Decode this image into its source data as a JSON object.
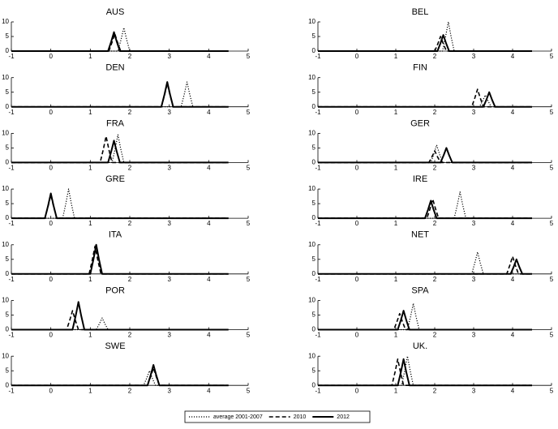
{
  "chart_data": {
    "type": "line",
    "legend": [
      {
        "name": "average 2001-2007",
        "dash": "dotted",
        "color": "#000000"
      },
      {
        "name": "2010",
        "dash": "dashed",
        "color": "#000000"
      },
      {
        "name": "2012",
        "dash": "solid",
        "color": "#000000"
      }
    ],
    "xlim": [
      -1,
      5
    ],
    "xticks": [
      -1,
      0,
      1,
      2,
      3,
      4,
      5
    ],
    "ylim": [
      0,
      10
    ],
    "yticks": [
      0,
      5,
      10
    ],
    "panels": [
      {
        "title": "AUS",
        "series": [
          {
            "x": [
              -1,
              1.7,
              1.78,
              1.85,
              1.92,
              2,
              4.5
            ],
            "values": [
              0,
              0,
              4,
              8,
              4,
              0,
              0
            ]
          },
          {
            "x": [
              -1,
              1.47,
              1.55,
              1.62,
              1.69,
              1.77,
              4.5
            ],
            "values": [
              0,
              0,
              3,
              6,
              3,
              0,
              0
            ]
          },
          {
            "x": [
              -1,
              1.45,
              1.53,
              1.6,
              1.67,
              1.75,
              4.5
            ],
            "values": [
              0,
              0,
              3.25,
              6.5,
              3.25,
              0,
              0
            ]
          }
        ]
      },
      {
        "title": "BEL",
        "series": [
          {
            "x": [
              -1,
              2.2,
              2.28,
              2.35,
              2.42,
              2.5,
              4.5
            ],
            "values": [
              0,
              0,
              5,
              10,
              5,
              0,
              0
            ]
          },
          {
            "x": [
              -1,
              2,
              2.08,
              2.15,
              2.22,
              2.3,
              4.5
            ],
            "values": [
              0,
              0,
              2.5,
              5,
              2.5,
              0,
              0
            ]
          },
          {
            "x": [
              -1,
              2.07,
              2.15,
              2.22,
              2.29,
              2.37,
              4.5
            ],
            "values": [
              0,
              0,
              2.75,
              5.5,
              2.75,
              0,
              0
            ]
          }
        ]
      },
      {
        "title": "DEN",
        "series": [
          {
            "x": [
              -1,
              3.3,
              3.38,
              3.45,
              3.52,
              3.6,
              4.5
            ],
            "values": [
              0,
              0,
              4.25,
              8.5,
              4.25,
              0,
              0
            ]
          },
          {
            "x": [
              -1,
              2.8,
              2.88,
              2.95,
              3.02,
              3.1,
              4.5
            ],
            "values": [
              0,
              0,
              4,
              8,
              4,
              0,
              0
            ]
          },
          {
            "x": [
              -1,
              2.8,
              2.88,
              2.95,
              3.02,
              3.1,
              4.5
            ],
            "values": [
              0,
              0,
              4.25,
              8.5,
              4.25,
              0,
              0
            ]
          }
        ]
      },
      {
        "title": "FIN",
        "series": [
          {
            "x": [
              -1,
              3.15,
              3.23,
              3.3,
              3.37,
              3.45,
              4.5
            ],
            "values": [
              0,
              0,
              2,
              4,
              2,
              0,
              0
            ]
          },
          {
            "x": [
              -1,
              2.95,
              3.03,
              3.1,
              3.17,
              3.25,
              4.5
            ],
            "values": [
              0,
              0,
              3,
              6,
              3,
              0,
              0
            ]
          },
          {
            "x": [
              -1,
              3.25,
              3.33,
              3.4,
              3.47,
              3.55,
              4.5
            ],
            "values": [
              0,
              0,
              2.5,
              5,
              2.5,
              0,
              0
            ]
          }
        ]
      },
      {
        "title": "FRA",
        "series": [
          {
            "x": [
              -1,
              1.55,
              1.63,
              1.7,
              1.77,
              1.85,
              4.5
            ],
            "values": [
              0,
              0,
              4.75,
              9.5,
              4.75,
              0,
              0
            ]
          },
          {
            "x": [
              -1,
              1.25,
              1.33,
              1.4,
              1.47,
              1.55,
              4.5
            ],
            "values": [
              0,
              0,
              4.5,
              9,
              4.5,
              0,
              0
            ]
          },
          {
            "x": [
              -1,
              1.45,
              1.53,
              1.6,
              1.67,
              1.75,
              4.5
            ],
            "values": [
              0,
              0,
              3.75,
              7.5,
              3.75,
              0,
              0
            ]
          }
        ]
      },
      {
        "title": "GER",
        "series": [
          {
            "x": [
              -1,
              1.9,
              1.98,
              2.05,
              2.12,
              2.2,
              4.5
            ],
            "values": [
              0,
              0,
              3,
              6,
              3,
              0,
              0
            ]
          },
          {
            "x": [
              -1,
              1.85,
              1.93,
              2,
              2.07,
              2.15,
              4.5
            ],
            "values": [
              0,
              0,
              2,
              4,
              2,
              0,
              0
            ]
          },
          {
            "x": [
              -1,
              2.15,
              2.23,
              2.3,
              2.37,
              2.45,
              4.5
            ],
            "values": [
              0,
              0,
              2.5,
              5,
              2.5,
              0,
              0
            ]
          }
        ]
      },
      {
        "title": "GRE",
        "series": [
          {
            "x": [
              -1,
              0.3,
              0.38,
              0.45,
              0.52,
              0.6,
              4.5
            ],
            "values": [
              0,
              0,
              5,
              10,
              5,
              0,
              0
            ]
          },
          {
            "x": [
              -1,
              -0.15,
              -0.07,
              0,
              0.07,
              0.15,
              4.5
            ],
            "values": [
              0,
              0,
              4,
              8,
              4,
              0,
              0
            ]
          },
          {
            "x": [
              -1,
              -0.15,
              -0.07,
              0,
              0.07,
              0.15,
              4.5
            ],
            "values": [
              0,
              0,
              4.25,
              8.5,
              4.25,
              0,
              0
            ]
          }
        ]
      },
      {
        "title": "IRE",
        "series": [
          {
            "x": [
              -1,
              2.5,
              2.58,
              2.65,
              2.72,
              2.8,
              4.5
            ],
            "values": [
              0,
              0,
              4.5,
              9,
              4.5,
              0,
              0
            ]
          },
          {
            "x": [
              -1,
              1.8,
              1.88,
              1.95,
              2.02,
              2.1,
              4.5
            ],
            "values": [
              0,
              0,
              3.25,
              6.5,
              3.25,
              0,
              0
            ]
          },
          {
            "x": [
              -1,
              1.75,
              1.83,
              1.9,
              1.97,
              2.05,
              4.5
            ],
            "values": [
              0,
              0,
              3,
              6,
              3,
              0,
              0
            ]
          }
        ]
      },
      {
        "title": "ITA",
        "series": [
          {
            "x": [
              -1,
              1,
              1.08,
              1.15,
              1.22,
              1.3,
              4.5
            ],
            "values": [
              0,
              0,
              5,
              10,
              5,
              0,
              0
            ]
          },
          {
            "x": [
              -1,
              0.97,
              1.05,
              1.12,
              1.19,
              1.27,
              4.5
            ],
            "values": [
              0,
              0,
              4.75,
              9.5,
              4.75,
              0,
              0
            ]
          },
          {
            "x": [
              -1,
              1,
              1.08,
              1.15,
              1.22,
              1.3,
              4.5
            ],
            "values": [
              0,
              0,
              5,
              10,
              5,
              0,
              0
            ]
          }
        ]
      },
      {
        "title": "NET",
        "series": [
          {
            "x": [
              -1,
              2.95,
              3.03,
              3.1,
              3.17,
              3.25,
              4.5
            ],
            "values": [
              0,
              0,
              3.75,
              7.5,
              3.75,
              0,
              0
            ]
          },
          {
            "x": [
              -1,
              3.85,
              3.93,
              4,
              4.07,
              4.15,
              4.5
            ],
            "values": [
              0,
              0,
              3,
              6,
              3,
              0,
              0
            ]
          },
          {
            "x": [
              -1,
              3.95,
              4.03,
              4.1,
              4.17,
              4.25,
              4.5
            ],
            "values": [
              0,
              0,
              2.5,
              5,
              2.5,
              0,
              0
            ]
          }
        ]
      },
      {
        "title": "POR",
        "series": [
          {
            "x": [
              -1,
              1.15,
              1.23,
              1.3,
              1.37,
              1.45,
              4.5
            ],
            "values": [
              0,
              0,
              2,
              4,
              2,
              0,
              0
            ]
          },
          {
            "x": [
              -1,
              0.4,
              0.48,
              0.55,
              0.62,
              0.7,
              4.5
            ],
            "values": [
              0,
              0,
              3.25,
              6.5,
              3.25,
              0,
              0
            ]
          },
          {
            "x": [
              -1,
              0.55,
              0.63,
              0.7,
              0.77,
              0.85,
              4.5
            ],
            "values": [
              0,
              0,
              4.75,
              9.5,
              4.75,
              0,
              0
            ]
          }
        ]
      },
      {
        "title": "SPA",
        "series": [
          {
            "x": [
              -1,
              1.3,
              1.38,
              1.45,
              1.52,
              1.6,
              4.5
            ],
            "values": [
              0,
              0,
              4.5,
              9,
              4.5,
              0,
              0
            ]
          },
          {
            "x": [
              -1,
              0.95,
              1.03,
              1.1,
              1.17,
              1.25,
              4.5
            ],
            "values": [
              0,
              0,
              2.75,
              5.5,
              2.75,
              0,
              0
            ]
          },
          {
            "x": [
              -1,
              1.05,
              1.13,
              1.2,
              1.27,
              1.35,
              4.5
            ],
            "values": [
              0,
              0,
              3.25,
              6.5,
              3.25,
              0,
              0
            ]
          }
        ]
      },
      {
        "title": "SWE",
        "series": [
          {
            "x": [
              -1,
              2.35,
              2.43,
              2.5,
              2.57,
              2.65,
              4.5
            ],
            "values": [
              0,
              0,
              2.5,
              5,
              2.5,
              0,
              0
            ]
          },
          {
            "x": [
              -1,
              2.45,
              2.53,
              2.6,
              2.67,
              2.75,
              4.5
            ],
            "values": [
              0,
              0,
              3,
              6,
              3,
              0,
              0
            ]
          },
          {
            "x": [
              -1,
              2.45,
              2.53,
              2.6,
              2.67,
              2.75,
              4.5
            ],
            "values": [
              0,
              0,
              3.5,
              7,
              3.5,
              0,
              0
            ]
          }
        ]
      },
      {
        "title": "UK.",
        "series": [
          {
            "x": [
              -1,
              1.15,
              1.23,
              1.3,
              1.37,
              1.45,
              4.5
            ],
            "values": [
              0,
              0,
              5,
              10,
              5,
              0,
              0
            ]
          },
          {
            "x": [
              -1,
              0.9,
              0.98,
              1.05,
              1.12,
              1.2,
              4.5
            ],
            "values": [
              0,
              0,
              4.5,
              9,
              4.5,
              0,
              0
            ]
          },
          {
            "x": [
              -1,
              1.05,
              1.13,
              1.2,
              1.27,
              1.35,
              4.5
            ],
            "values": [
              0,
              0,
              4.5,
              9,
              4.5,
              0,
              0
            ]
          }
        ]
      }
    ]
  }
}
